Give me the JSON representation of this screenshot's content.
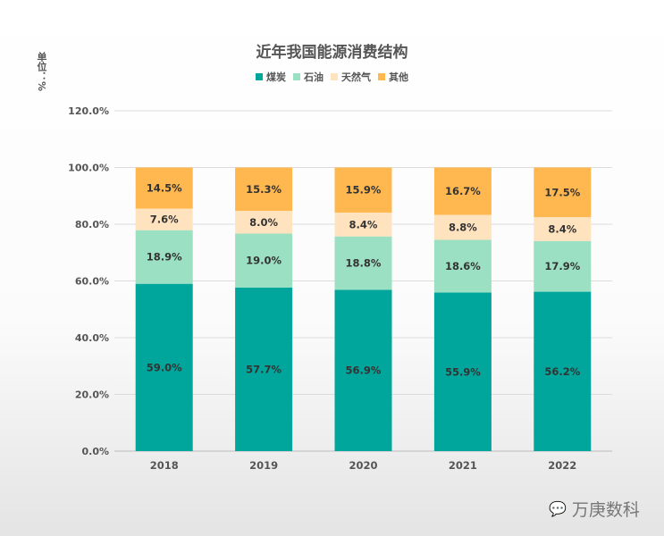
{
  "chart_data": {
    "type": "bar",
    "stacked": true,
    "title": "近年我国能源消费结构",
    "ylabel": "单位：%",
    "categories": [
      "2018",
      "2019",
      "2020",
      "2021",
      "2022"
    ],
    "ylim": [
      0,
      120
    ],
    "yticks": [
      "0.0%",
      "20.0%",
      "40.0%",
      "60.0%",
      "80.0%",
      "100.0%",
      "120.0%"
    ],
    "grid": true,
    "legend": "top",
    "series": [
      {
        "name": "煤炭",
        "color": "#00a69c",
        "values": [
          59.0,
          57.7,
          56.9,
          55.9,
          56.2
        ]
      },
      {
        "name": "石油",
        "color": "#9ce0c3",
        "values": [
          18.9,
          19.0,
          18.8,
          18.6,
          17.9
        ]
      },
      {
        "name": "天然气",
        "color": "#ffe3bf",
        "values": [
          7.6,
          8.0,
          8.4,
          8.8,
          8.4
        ]
      },
      {
        "name": "其他",
        "color": "#ffb84f",
        "values": [
          14.5,
          15.3,
          15.9,
          16.7,
          17.5
        ]
      }
    ]
  },
  "watermark": "万庚数科"
}
